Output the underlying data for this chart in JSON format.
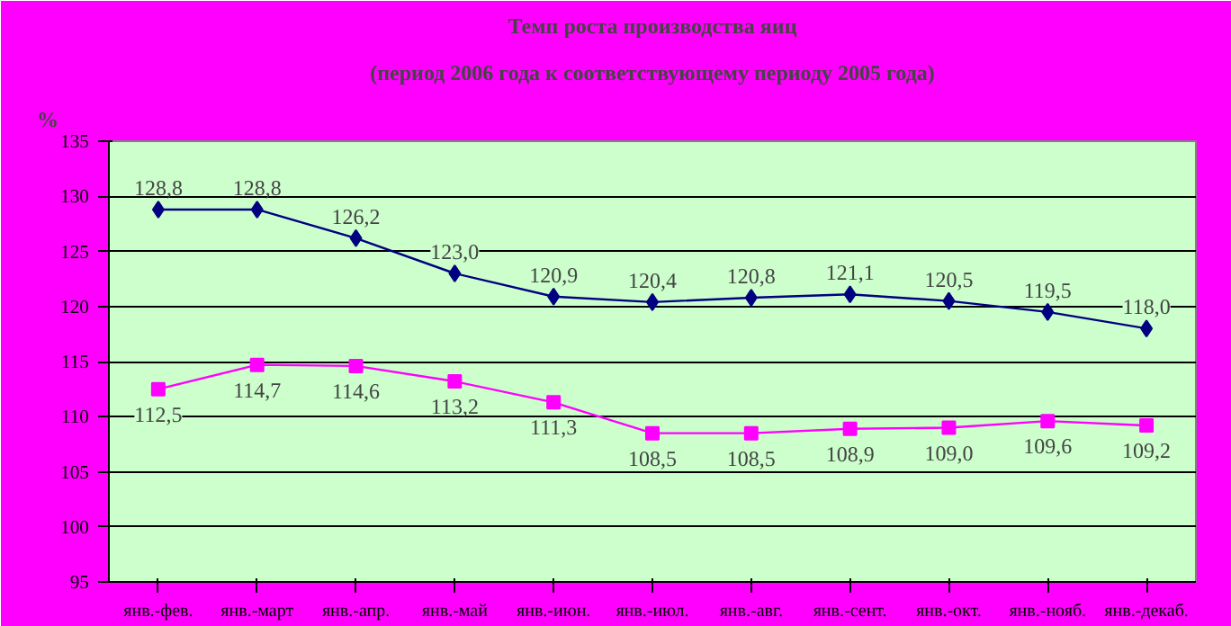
{
  "chart_data": {
    "type": "line",
    "title": "Темп роста производства яиц",
    "subtitle": "(период 2006 года к соответствующему периоду 2005 года)",
    "ylabel": "%",
    "categories": [
      "янв.-фев.",
      "янв.-март",
      "янв.-апр.",
      "янв.-май",
      "янв.-июн.",
      "янв.-июл.",
      "янв.-авг.",
      "янв.-сент.",
      "янв.-окт.",
      "янв.-нояб.",
      "янв.-декаб."
    ],
    "series": [
      {
        "color": "#000080",
        "marker": "diamond",
        "values": [
          128.8,
          128.8,
          126.2,
          123.0,
          120.9,
          120.4,
          120.8,
          121.1,
          120.5,
          119.5,
          118.0
        ],
        "value_labels": [
          "128,8",
          "128,8",
          "126,2",
          "123,0",
          "120,9",
          "120,4",
          "120,8",
          "121,1",
          "120,5",
          "119,5",
          "118,0"
        ]
      },
      {
        "color": "#ff00ff",
        "marker": "square",
        "values": [
          112.5,
          114.7,
          114.6,
          113.2,
          111.3,
          108.5,
          108.5,
          108.9,
          109.0,
          109.6,
          109.2
        ],
        "value_labels": [
          "112,5",
          "114,7",
          "114,6",
          "113,2",
          "111,3",
          "108,5",
          "108,5",
          "108,9",
          "109,0",
          "109,6",
          "109,2"
        ]
      }
    ],
    "ylim": [
      95,
      135
    ],
    "yticks": [
      95,
      100,
      105,
      110,
      115,
      120,
      125,
      130,
      135
    ],
    "grid": "y"
  }
}
